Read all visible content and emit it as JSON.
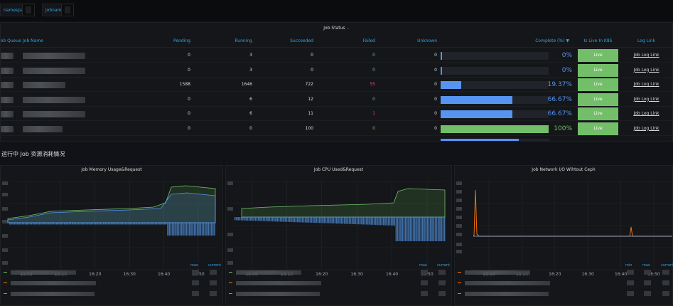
{
  "variables": {
    "namespace_label": "namespace",
    "jobname_label": "jobname"
  },
  "job_status": {
    "title": "Job Status",
    "columns": {
      "queue": "Job Queue",
      "name": "Job Name",
      "pending": "Pending",
      "running": "Running",
      "succeeded": "Succeeded",
      "failed": "Failed",
      "unknown": "Unknown",
      "complete": "Complete (%)",
      "live": "Is Live In K8S",
      "log": "Log Link"
    },
    "sort_indicator": "▼",
    "rows": [
      {
        "pending": "0",
        "running": "3",
        "succeeded": "0",
        "failed": "0",
        "unknown": "0",
        "complete": "0%",
        "fraction": 0.0,
        "live": "Live",
        "log": "Job Log Link"
      },
      {
        "pending": "0",
        "running": "3",
        "succeeded": "0",
        "failed": "0",
        "unknown": "0",
        "complete": "0%",
        "fraction": 0.0,
        "live": "Live",
        "log": "Job Log Link"
      },
      {
        "pending": "1588",
        "running": "1646",
        "succeeded": "722",
        "failed": "55",
        "unknown": "0",
        "complete": "19.37%",
        "fraction": 0.1937,
        "live": "Live",
        "log": "Job Log Link"
      },
      {
        "pending": "0",
        "running": "6",
        "succeeded": "12",
        "failed": "0",
        "unknown": "0",
        "complete": "66.67%",
        "fraction": 0.6667,
        "live": "Live",
        "log": "Job Log Link"
      },
      {
        "pending": "0",
        "running": "6",
        "succeeded": "11",
        "failed": "1",
        "unknown": "0",
        "complete": "66.67%",
        "fraction": 0.6667,
        "live": "Live",
        "log": "Job Log Link"
      },
      {
        "pending": "0",
        "running": "0",
        "succeeded": "100",
        "failed": "0",
        "unknown": "0",
        "complete": "100%",
        "fraction": 1.0,
        "live": "Live",
        "log": "Job Log Link"
      }
    ]
  },
  "section_title": "运行中 Job 资源消耗情况",
  "graphs": [
    {
      "title": "Job Memory Usage&Request",
      "x_ticks": [
        "16:00",
        "16:10",
        "16:20",
        "16:30",
        "16:40",
        "16:50"
      ],
      "legend_cols": [
        "max",
        "current"
      ]
    },
    {
      "title": "Job CPU Used&Request",
      "x_ticks": [
        "16:00",
        "16:10",
        "16:20",
        "16:30",
        "16:40",
        "16:50"
      ],
      "legend_cols": [
        "max",
        "current"
      ]
    },
    {
      "title": "Job Network I/O Wihtout Ceph",
      "x_ticks": [
        "16:00",
        "16:10",
        "16:20",
        "16:30",
        "16:40",
        "16:50"
      ],
      "legend_cols": [
        "min",
        "max",
        "current"
      ]
    }
  ],
  "colors": {
    "green": "#73bf69",
    "blue": "#5794f2",
    "red": "#f2495c",
    "orange": "#ff780a",
    "header_blue": "#33a2e5"
  }
}
